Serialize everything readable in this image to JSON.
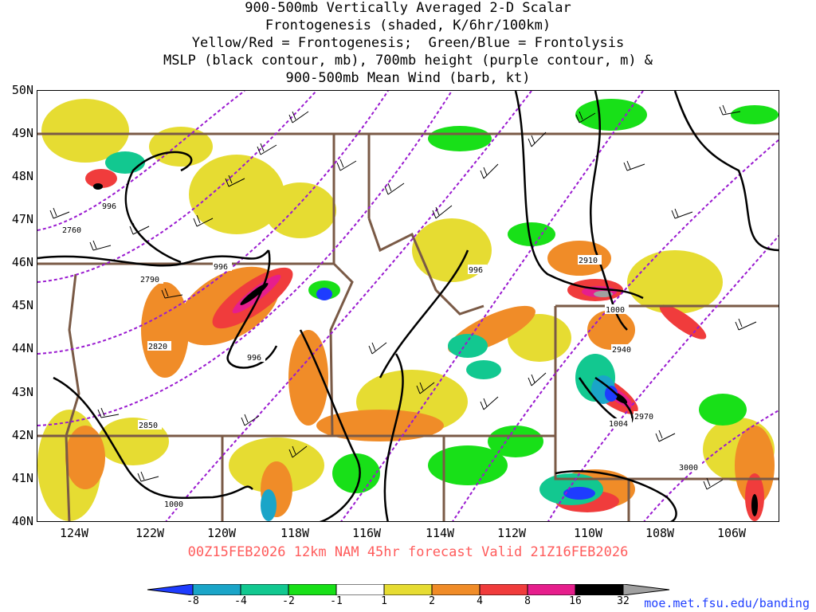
{
  "titles": [
    "900-500mb Vertically Averaged 2-D Scalar",
    "Frontogenesis (shaded, K/6hr/100km)",
    "Yellow/Red = Frontogenesis;  Green/Blue = Frontolysis",
    "MSLP (black contour, mb), 700mb height (purple contour, m) &",
    "900-500mb Mean Wind (barb, kt)"
  ],
  "lat_labels": [
    "50N",
    "49N",
    "48N",
    "47N",
    "46N",
    "45N",
    "44N",
    "43N",
    "42N",
    "41N",
    "40N"
  ],
  "lon_labels": [
    "124W",
    "122W",
    "120W",
    "118W",
    "116W",
    "114W",
    "112W",
    "110W",
    "108W",
    "106W"
  ],
  "valid_line": "00Z15FEB2026 12km NAM 45hr forecast Valid 21Z16FEB2026",
  "credit": "moe.met.fsu.edu/banding",
  "colorbar": {
    "labels": [
      "-8",
      "-4",
      "-2",
      "-1",
      "1",
      "2",
      "4",
      "8",
      "16",
      "32"
    ],
    "colors": [
      "#1e3cff",
      "#1aa5c8",
      "#12c890",
      "#18e018",
      "#ffffff",
      "#e6dc32",
      "#f08c28",
      "#f03c3c",
      "#e61e8c",
      "#000000",
      "#a0a0a0"
    ]
  },
  "contours": {
    "mslp": [
      "996",
      "996",
      "996",
      "996",
      "1000",
      "1000",
      "1004"
    ],
    "height": [
      "2760",
      "2790",
      "2820",
      "2850",
      "2910",
      "2940",
      "2970",
      "3000"
    ]
  },
  "colors": {
    "title": "#000000",
    "valid": "#ff5b5b",
    "credit": "#1f3fff",
    "borders": "#7a5a46",
    "height_contour": "#9a1ad0",
    "mslp_contour": "#000000"
  }
}
